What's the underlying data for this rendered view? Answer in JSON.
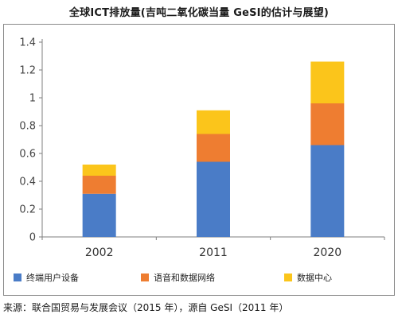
{
  "title": "全球ICT排放量(吉吨二氧化碳当量 GeSI的估计与展望)",
  "source": "来源：联合国贸易与发展会议（2015 年），源自 GeSI（2011 年）",
  "chart_data": {
    "type": "bar",
    "stacked": true,
    "categories": [
      "2002",
      "2011",
      "2020"
    ],
    "series": [
      {
        "name": "终端用户设备",
        "color": "#4a7cc7",
        "values": [
          0.31,
          0.54,
          0.66
        ]
      },
      {
        "name": "语音和数据网络",
        "color": "#ee7d31",
        "values": [
          0.13,
          0.2,
          0.3
        ]
      },
      {
        "name": "数据中心",
        "color": "#fbc51b",
        "values": [
          0.08,
          0.17,
          0.3
        ]
      }
    ],
    "ylim": [
      0,
      1.4
    ],
    "yticks": [
      "0",
      "0.2",
      "0.4",
      "0.6",
      "0.8",
      "1",
      "1.2",
      "1.4"
    ],
    "grid": false,
    "legend_position": "bottom"
  }
}
